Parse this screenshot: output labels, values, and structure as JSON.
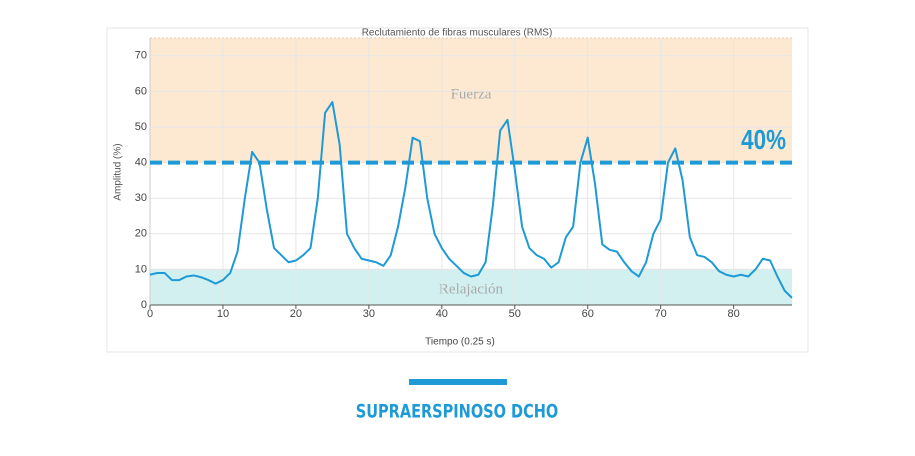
{
  "chart_data": {
    "type": "line",
    "title": "Reclutamiento de fibras musculares (RMS)",
    "x_label": "Tiempo (0.25 s)",
    "y_label": "Amplitud (%)",
    "x": [
      0,
      1,
      2,
      3,
      4,
      5,
      6,
      7,
      8,
      9,
      10,
      11,
      12,
      13,
      14,
      15,
      16,
      17,
      18,
      19,
      20,
      21,
      22,
      23,
      24,
      25,
      26,
      27,
      28,
      29,
      30,
      31,
      32,
      33,
      34,
      35,
      36,
      37,
      38,
      39,
      40,
      41,
      42,
      43,
      44,
      45,
      46,
      47,
      48,
      49,
      50,
      51,
      52,
      53,
      54,
      55,
      56,
      57,
      58,
      59,
      60,
      61,
      62,
      63,
      64,
      65,
      66,
      67,
      68,
      69,
      70,
      71,
      72,
      73,
      74,
      75,
      76,
      77,
      78,
      79,
      80,
      81,
      82,
      83,
      84,
      85,
      86,
      87,
      88
    ],
    "series": [
      {
        "color": "#1e9ad6",
        "values": [
          8.5,
          9,
          9,
          7,
          7,
          8,
          8.3,
          7.8,
          7,
          6,
          7,
          9,
          15,
          30,
          43,
          40,
          27,
          16,
          14,
          12,
          12.5,
          14,
          16,
          30,
          54,
          57,
          45,
          20,
          16,
          13,
          12.5,
          12,
          11,
          14,
          22,
          33,
          47,
          46,
          30,
          20,
          16,
          13,
          11,
          9,
          8,
          8.5,
          12,
          28,
          49,
          52,
          38,
          22,
          16,
          14,
          13,
          10.5,
          12,
          19,
          22,
          40,
          47,
          34,
          17,
          15.5,
          15,
          12,
          9.5,
          8,
          12,
          20,
          24,
          40,
          44,
          35,
          19,
          14,
          13.5,
          12,
          9.5,
          8.5,
          8,
          8.5,
          8,
          10,
          13,
          12.5,
          8,
          4,
          2
        ]
      }
    ],
    "bands": [
      {
        "label": "Fuerza",
        "from": 40,
        "to": 75,
        "color": "#fde8d2"
      },
      {
        "label": "Relajación",
        "from": 0,
        "to": 10,
        "color": "#d2f0f0"
      }
    ],
    "threshold": {
      "value": 40,
      "label": "40%",
      "color": "#1e9ad6"
    },
    "xlim": [
      0,
      88
    ],
    "xticks": [
      0,
      10,
      20,
      30,
      40,
      50,
      60,
      70,
      80
    ],
    "ylim": [
      0,
      75
    ],
    "yticks": [
      0,
      10,
      20,
      30,
      40,
      50,
      60,
      70
    ],
    "grid": true
  },
  "caption": "SUPRAERSPINOSO DCHO"
}
